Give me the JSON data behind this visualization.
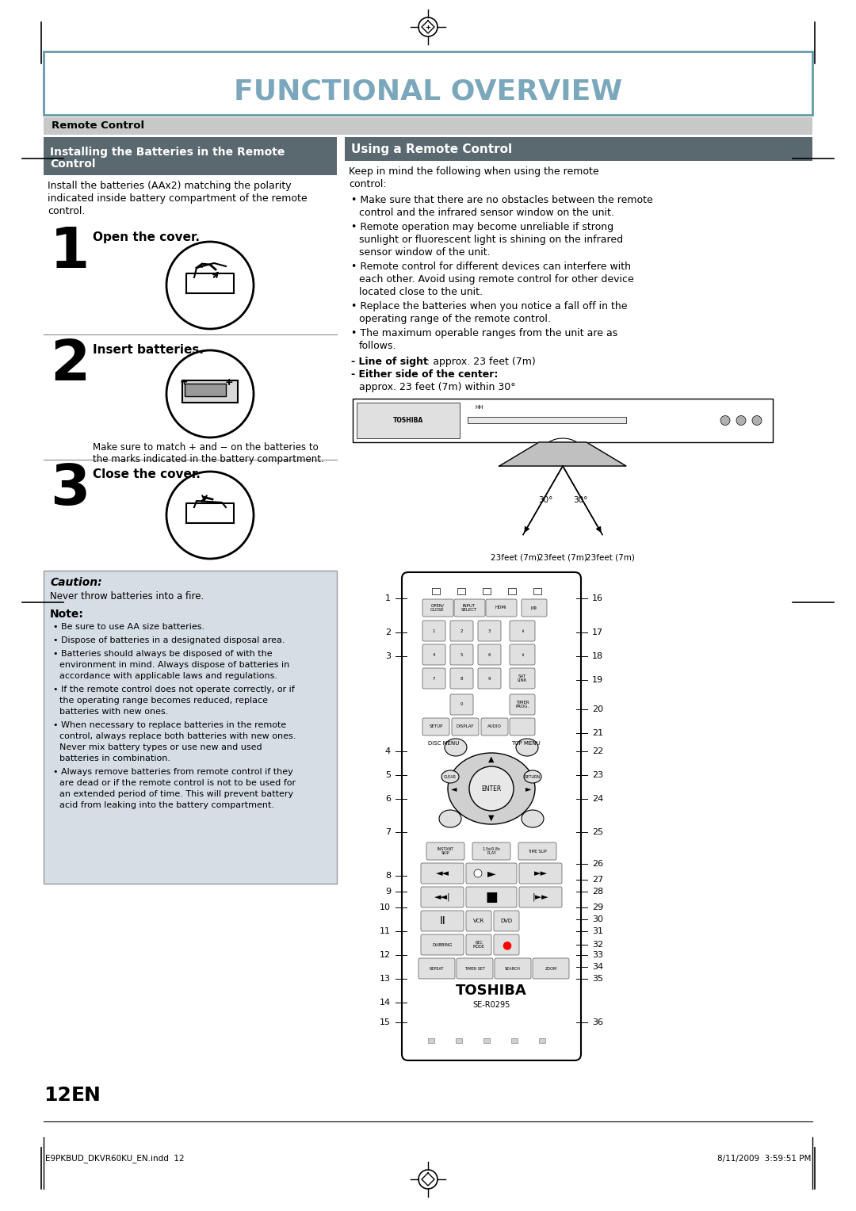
{
  "title": "FUNCTIONAL OVERVIEW",
  "title_color": "#7ba7bc",
  "bg_color": "#ffffff",
  "remote_control_label": "Remote Control",
  "left_section_title_line1": "Installing the Batteries in the Remote",
  "left_section_title_line2": "Control",
  "right_section_title": "Using a Remote Control",
  "intro_text_lines": [
    "Install the batteries (AAx2) matching the polarity",
    "indicated inside battery compartment of the remote",
    "control."
  ],
  "step1_text": "Open the cover.",
  "step2_text": "Insert batteries.",
  "step2_note_lines": [
    "Make sure to match + and − on the batteries to",
    "the marks indicated in the battery compartment."
  ],
  "step3_text": "Close the cover.",
  "caution_title": "Caution:",
  "caution_text": "Never throw batteries into a fire.",
  "note_title": "Note:",
  "note_bullets": [
    "Be sure to use AA size batteries.",
    "Dispose of batteries in a designated disposal area.",
    "Batteries should always be disposed of with the\nenvironment in mind. Always dispose of batteries in\naccordance with applicable laws and regulations.",
    "If the remote control does not operate correctly, or if\nthe operating range becomes reduced, replace\nbatteries with new ones.",
    "When necessary to replace batteries in the remote\ncontrol, always replace both batteries with new ones.\nNever mix battery types or use new and used\nbatteries in combination.",
    "Always remove batteries from remote control if they\nare dead or if the remote control is not to be used for\nan extended period of time. This will prevent battery\nacid from leaking into the battery compartment."
  ],
  "right_intro_lines": [
    "Keep in mind the following when using the remote",
    "control:"
  ],
  "right_bullets": [
    "Make sure that there are no obstacles between the remote\ncontrol and the infrared sensor window on the unit.",
    "Remote operation may become unreliable if strong\nsunlight or fluorescent light is shining on the infrared\nsensor window of the unit.",
    "Remote control for different devices can interfere with\neach other. Avoid using remote control for other device\nlocated close to the unit.",
    "Replace the batteries when you notice a fall off in the\noperating range of the remote control.",
    "The maximum operable ranges from the unit are as\nfollows."
  ],
  "range_line1": "- ​Line of sight​: approx. 23 feet (7m)",
  "range_line2": "- ​Either side of the center:​",
  "range_line3": "  approx. 23 feet (7m) within 30°",
  "remote_nums_left": [
    "1",
    "2",
    "3",
    "4",
    "5",
    "6",
    "7",
    "8",
    "9",
    "10",
    "11",
    "12",
    "13",
    "14",
    "15"
  ],
  "remote_nums_right": [
    "16",
    "17",
    "18",
    "19",
    "20",
    "21",
    "22",
    "23",
    "24",
    "25",
    "26",
    "27",
    "28",
    "29",
    "30",
    "31",
    "32",
    "33",
    "34",
    "35",
    "36"
  ],
  "range_labels": [
    "23feet (7m)",
    "23feet (7m)",
    "23feet (7m)"
  ],
  "page_number": "12",
  "page_en": "EN",
  "footer_left": "E9PKBUD_DKVR60KU_EN.indd  12",
  "footer_right": "8/11/2009  3:59:51 PM"
}
